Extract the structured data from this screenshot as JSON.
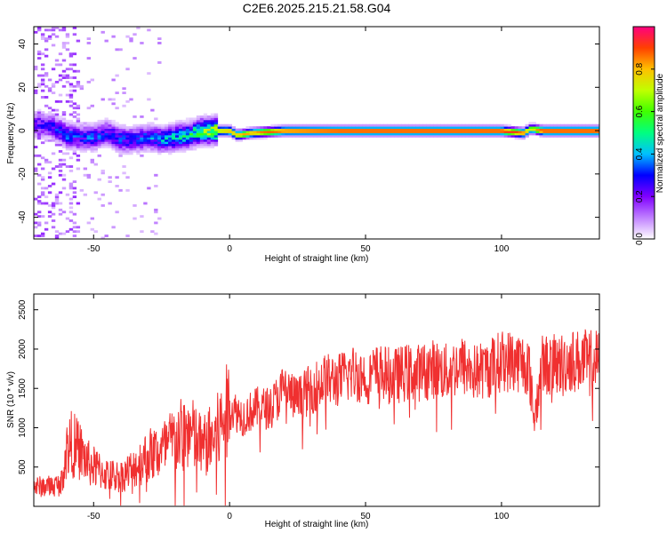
{
  "title": "C2E6.2025.215.21.58.G04",
  "chart_data": [
    {
      "type": "heatmap",
      "panel": "top",
      "xlabel": "Height of straight line (km)",
      "ylabel": "Frequency (Hz)",
      "xlim": [
        -72,
        136
      ],
      "ylim": [
        -50,
        48
      ],
      "xticks": [
        -50,
        0,
        50,
        100
      ],
      "yticks": [
        -40,
        -20,
        0,
        20,
        40
      ],
      "colorbar": {
        "label": "Normalized spectral amplitude",
        "range": [
          0,
          1
        ],
        "ticks": [
          "0.0",
          "0.2",
          "0.4",
          "0.6",
          "0.8"
        ],
        "tick_values": [
          0.0,
          0.2,
          0.4,
          0.6,
          0.8
        ],
        "colormap": [
          "#ffffff",
          "#c080ff",
          "#8000ff",
          "#0000ff",
          "#00c0ff",
          "#00ff80",
          "#40ff00",
          "#c0ff00",
          "#ffc000",
          "#ff4000",
          "#ff0080"
        ]
      },
      "ridge": {
        "description_points_x": [
          -70,
          -65,
          -60,
          -55,
          -50,
          -45,
          -40,
          -35,
          -30,
          -25,
          -20,
          -15,
          -10,
          -5,
          0,
          3,
          8,
          20,
          40,
          60,
          80,
          100,
          108,
          111,
          115,
          136
        ],
        "freq": [
          3,
          2,
          -2,
          -3,
          -3,
          -1,
          -4,
          -4,
          -3,
          -4,
          -3,
          -2,
          0,
          0,
          0,
          -2,
          -1,
          0,
          0,
          0,
          0,
          0,
          -1,
          1,
          0,
          0
        ],
        "amplitude": [
          0.25,
          0.3,
          0.35,
          0.3,
          0.35,
          0.3,
          0.35,
          0.3,
          0.35,
          0.4,
          0.45,
          0.5,
          0.6,
          0.75,
          0.85,
          0.8,
          0.85,
          0.9,
          0.95,
          0.95,
          0.95,
          0.95,
          0.9,
          0.7,
          0.95,
          0.95
        ]
      }
    },
    {
      "type": "line",
      "panel": "bottom",
      "xlabel": "Height of straight line (km)",
      "ylabel": "SNR (10 * v/v)",
      "xlim": [
        -72,
        136
      ],
      "ylim": [
        0,
        2700
      ],
      "xticks": [
        -50,
        0,
        50,
        100
      ],
      "yticks": [
        500,
        1000,
        1500,
        2000,
        2500
      ],
      "color": "#f03030",
      "series": [
        {
          "x": [
            -72,
            -70,
            -65,
            -62,
            -60,
            -58,
            -55,
            -52,
            -50,
            -45,
            -40,
            -35,
            -30,
            -25,
            -20,
            -15,
            -10,
            -5,
            0,
            5,
            10,
            15,
            20,
            25,
            30,
            35,
            40,
            45,
            50,
            55,
            60,
            65,
            70,
            75,
            80,
            85,
            90,
            95,
            100,
            105,
            110,
            112,
            115,
            120,
            125,
            130,
            136
          ],
          "y": [
            250,
            250,
            260,
            280,
            700,
            800,
            700,
            550,
            500,
            400,
            380,
            500,
            650,
            700,
            850,
            950,
            750,
            900,
            1250,
            1150,
            1250,
            1250,
            1500,
            1350,
            1500,
            1600,
            1600,
            1700,
            1650,
            1700,
            1650,
            1700,
            1700,
            1750,
            1700,
            1800,
            1700,
            1750,
            1850,
            1850,
            1800,
            1100,
            1800,
            1800,
            1850,
            1850,
            1850
          ]
        }
      ]
    }
  ]
}
